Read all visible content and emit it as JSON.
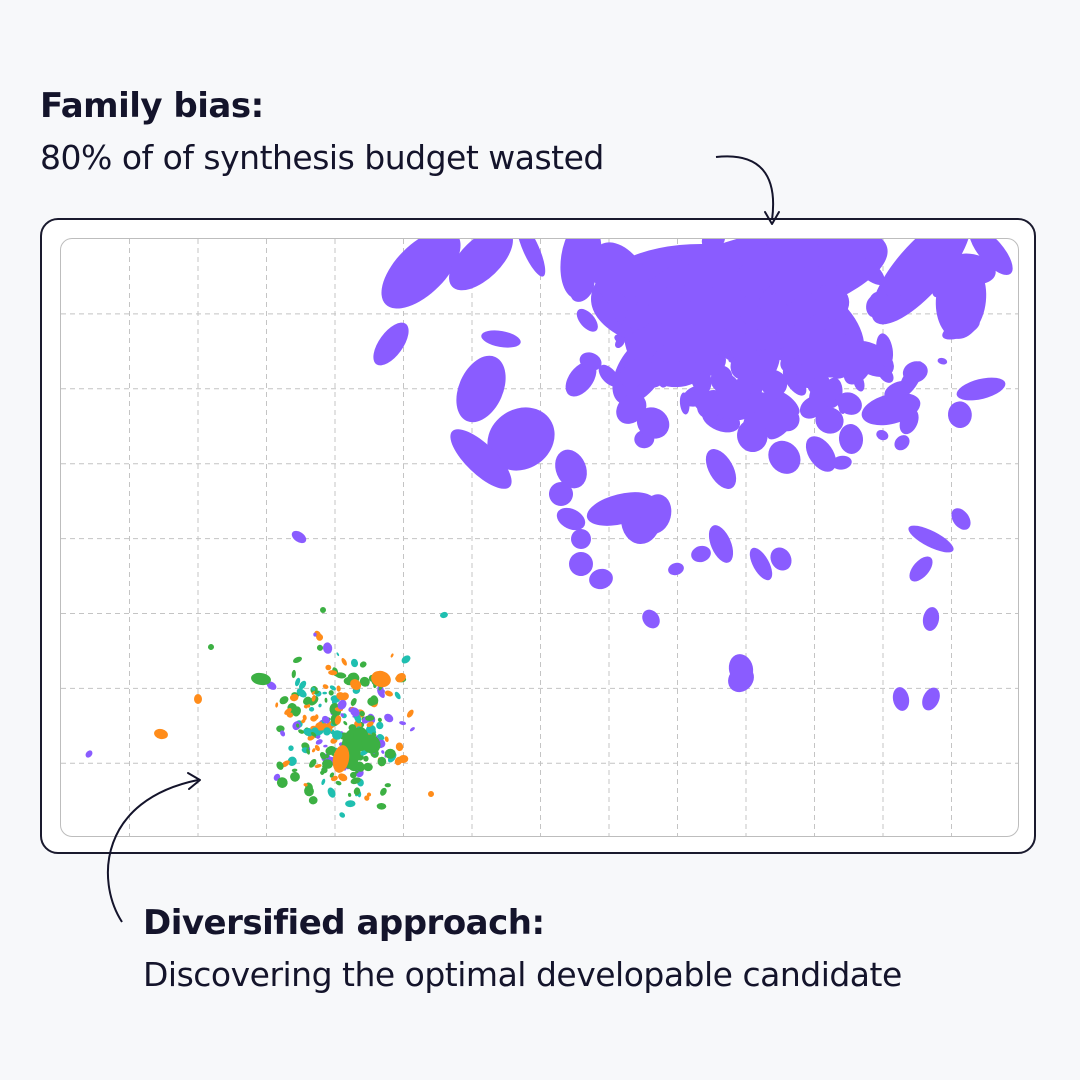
{
  "annotations": {
    "family_bias": {
      "title": "Family bias:",
      "subtitle": "80% of of synthesis budget wasted"
    },
    "diversified": {
      "title": "Diversified approach:",
      "subtitle": "Discovering the optimal developable candidate"
    }
  },
  "colors": {
    "family_cluster": "#8a5cff",
    "diverse_orange": "#ff8c1a",
    "diverse_green": "#3cb043",
    "diverse_teal": "#1fbfb0",
    "diverse_purple": "#8a5cff",
    "grid": "#c4c4c4",
    "frame": "#1a1a2e"
  },
  "chart_data": {
    "type": "scatter",
    "grid": true,
    "axes_labeled": false,
    "regions": [
      {
        "role": "family-bias-cluster",
        "location": "top-right",
        "color": "#8a5cff"
      },
      {
        "role": "diversified-cluster",
        "location": "bottom-left",
        "colors": [
          "#ff8c1a",
          "#3cb043",
          "#1fbfb0",
          "#8a5cff"
        ]
      }
    ]
  }
}
